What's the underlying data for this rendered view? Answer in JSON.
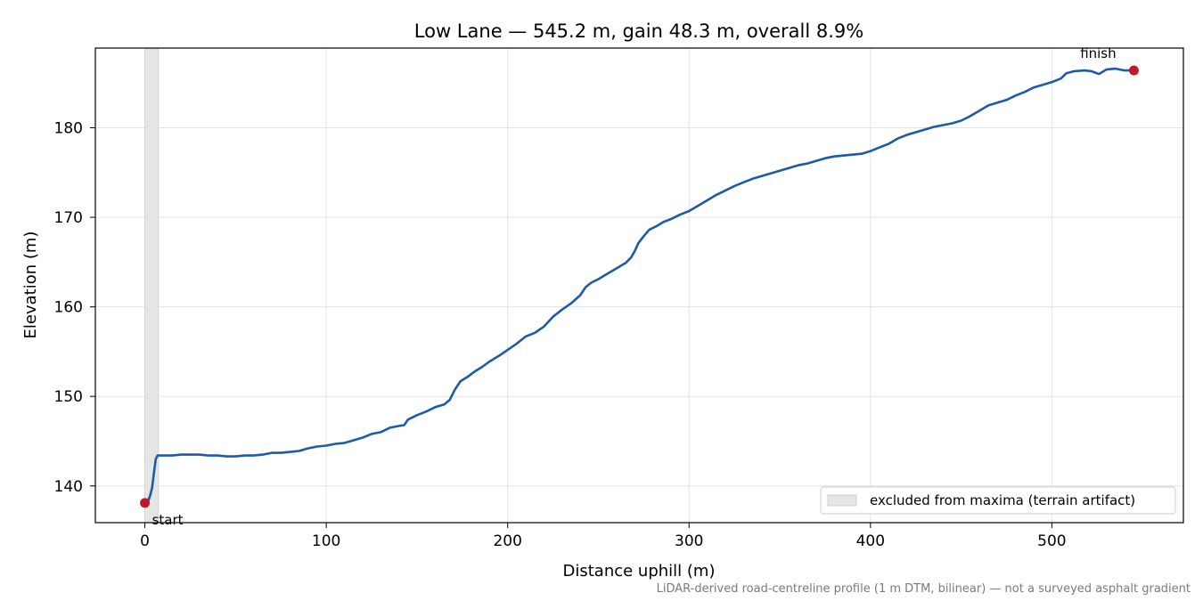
{
  "chart_data": {
    "type": "line",
    "title": "Low Lane — 545.2 m, gain 48.3 m, overall 8.9%",
    "xlabel": "Distance uphill (m)",
    "ylabel": "Elevation (m)",
    "xlim": [
      -27.3,
      572.5
    ],
    "ylim": [
      135.9,
      188.9
    ],
    "x_ticks": [
      0,
      100,
      200,
      300,
      400,
      500
    ],
    "y_ticks": [
      140,
      150,
      160,
      170,
      180
    ],
    "grid": true,
    "legend": {
      "location": "bottom-right",
      "label": "excluded from maxima (terrain artifact)"
    },
    "excluded_band": {
      "x_start": 0,
      "x_end": 7.5
    },
    "footnote": "LiDAR-derived road-centreline profile (1 m DTM, bilinear) — not a surveyed asphalt gradient",
    "series": [
      {
        "color": "#1f5aa6",
        "points": [
          [
            0,
            138.1
          ],
          [
            2,
            138.4
          ],
          [
            3,
            139.0
          ],
          [
            4,
            139.8
          ],
          [
            5,
            141.5
          ],
          [
            6,
            143.0
          ],
          [
            7,
            143.4
          ],
          [
            10,
            143.4
          ],
          [
            15,
            143.4
          ],
          [
            20,
            143.5
          ],
          [
            25,
            143.5
          ],
          [
            30,
            143.5
          ],
          [
            35,
            143.4
          ],
          [
            40,
            143.4
          ],
          [
            45,
            143.3
          ],
          [
            50,
            143.3
          ],
          [
            55,
            143.4
          ],
          [
            60,
            143.4
          ],
          [
            65,
            143.5
          ],
          [
            70,
            143.7
          ],
          [
            75,
            143.7
          ],
          [
            80,
            143.8
          ],
          [
            85,
            143.9
          ],
          [
            90,
            144.2
          ],
          [
            95,
            144.4
          ],
          [
            100,
            144.5
          ],
          [
            105,
            144.7
          ],
          [
            110,
            144.8
          ],
          [
            115,
            145.1
          ],
          [
            120,
            145.4
          ],
          [
            125,
            145.8
          ],
          [
            130,
            146.0
          ],
          [
            135,
            146.5
          ],
          [
            140,
            146.7
          ],
          [
            143,
            146.8
          ],
          [
            145,
            147.4
          ],
          [
            150,
            147.9
          ],
          [
            155,
            148.3
          ],
          [
            160,
            148.8
          ],
          [
            165,
            149.1
          ],
          [
            168,
            149.6
          ],
          [
            171,
            150.8
          ],
          [
            174,
            151.7
          ],
          [
            178,
            152.2
          ],
          [
            182,
            152.8
          ],
          [
            186,
            153.3
          ],
          [
            190,
            153.9
          ],
          [
            195,
            154.5
          ],
          [
            200,
            155.2
          ],
          [
            205,
            155.9
          ],
          [
            210,
            156.7
          ],
          [
            215,
            157.1
          ],
          [
            220,
            157.8
          ],
          [
            225,
            158.9
          ],
          [
            230,
            159.7
          ],
          [
            235,
            160.4
          ],
          [
            240,
            161.3
          ],
          [
            243,
            162.2
          ],
          [
            246,
            162.7
          ],
          [
            250,
            163.1
          ],
          [
            255,
            163.7
          ],
          [
            260,
            164.3
          ],
          [
            265,
            164.9
          ],
          [
            268,
            165.5
          ],
          [
            270,
            166.2
          ],
          [
            272,
            167.1
          ],
          [
            275,
            167.9
          ],
          [
            278,
            168.6
          ],
          [
            282,
            169.0
          ],
          [
            286,
            169.5
          ],
          [
            290,
            169.8
          ],
          [
            295,
            170.3
          ],
          [
            300,
            170.7
          ],
          [
            305,
            171.3
          ],
          [
            310,
            171.9
          ],
          [
            315,
            172.5
          ],
          [
            320,
            173.0
          ],
          [
            325,
            173.5
          ],
          [
            330,
            173.9
          ],
          [
            335,
            174.3
          ],
          [
            340,
            174.6
          ],
          [
            345,
            174.9
          ],
          [
            350,
            175.2
          ],
          [
            355,
            175.5
          ],
          [
            360,
            175.8
          ],
          [
            365,
            176.0
          ],
          [
            370,
            176.3
          ],
          [
            375,
            176.6
          ],
          [
            380,
            176.8
          ],
          [
            385,
            176.9
          ],
          [
            390,
            177.0
          ],
          [
            395,
            177.1
          ],
          [
            400,
            177.4
          ],
          [
            405,
            177.8
          ],
          [
            410,
            178.2
          ],
          [
            415,
            178.8
          ],
          [
            420,
            179.2
          ],
          [
            425,
            179.5
          ],
          [
            430,
            179.8
          ],
          [
            435,
            180.1
          ],
          [
            440,
            180.3
          ],
          [
            445,
            180.5
          ],
          [
            450,
            180.8
          ],
          [
            455,
            181.3
          ],
          [
            460,
            181.9
          ],
          [
            465,
            182.5
          ],
          [
            470,
            182.8
          ],
          [
            475,
            183.1
          ],
          [
            480,
            183.6
          ],
          [
            485,
            184.0
          ],
          [
            490,
            184.5
          ],
          [
            495,
            184.8
          ],
          [
            500,
            185.1
          ],
          [
            505,
            185.5
          ],
          [
            508,
            186.1
          ],
          [
            512,
            186.3
          ],
          [
            518,
            186.4
          ],
          [
            522,
            186.3
          ],
          [
            526,
            186.0
          ],
          [
            530,
            186.5
          ],
          [
            535,
            186.6
          ],
          [
            540,
            186.4
          ],
          [
            545.2,
            186.4
          ]
        ]
      }
    ],
    "markers": [
      {
        "x": 0,
        "y": 138.1,
        "label": "start",
        "color": "#c0192b"
      },
      {
        "x": 545.2,
        "y": 186.4,
        "label": "finish",
        "color": "#c0192b"
      }
    ]
  }
}
